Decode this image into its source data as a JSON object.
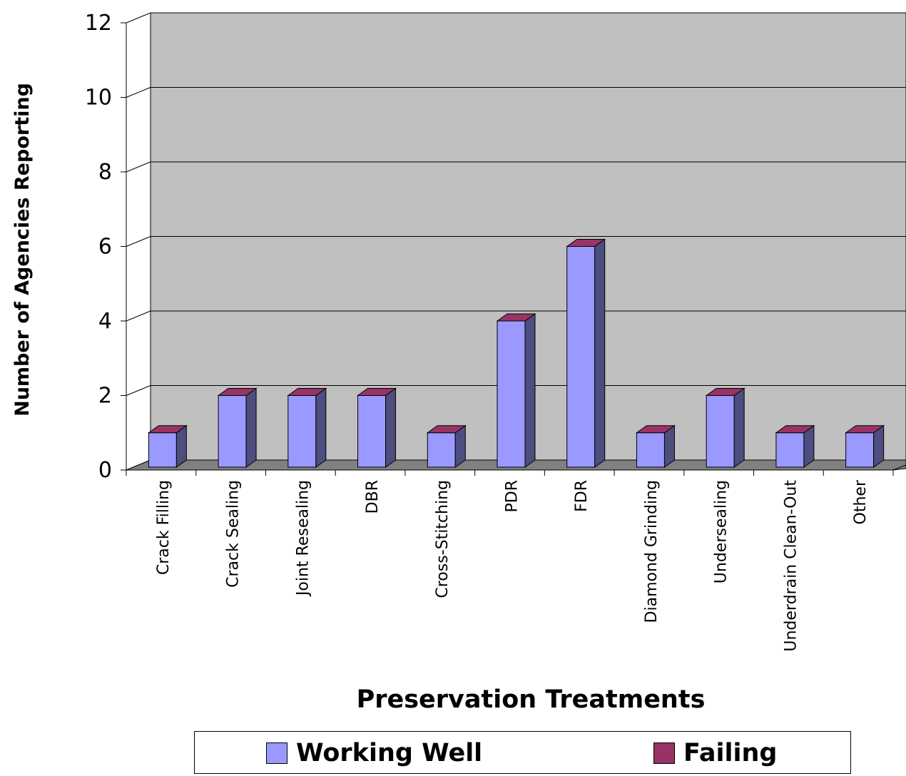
{
  "chart_data": {
    "type": "bar",
    "three_d": true,
    "xlabel": "Preservation Treatments",
    "ylabel": "Number of Agencies Reporting",
    "ylim": [
      0,
      12
    ],
    "yticks": [
      0,
      2,
      4,
      6,
      8,
      10,
      12
    ],
    "grid": true,
    "legend_position": "bottom",
    "categories": [
      "Crack Filling",
      "Crack Sealing",
      "Joint Resealing",
      "DBR",
      "Cross-Stitching",
      "PDR",
      "FDR",
      "Diamond Grinding",
      "Undersealing",
      "Underdrain Clean-Out",
      "Other"
    ],
    "series": [
      {
        "name": "Working Well",
        "color": "#9999ff",
        "side_color": "#4d4d80",
        "values": [
          1,
          2,
          2,
          2,
          1,
          4,
          6,
          1,
          2,
          1,
          1
        ]
      },
      {
        "name": "Failing",
        "color": "#993366",
        "side_color": "#4d1a33",
        "values": [
          0,
          0,
          0,
          0,
          0,
          0,
          0,
          0,
          0,
          0,
          0
        ]
      }
    ],
    "colors": {
      "plot_wall": "#c0c0c0",
      "floor": "#808080",
      "gridline": "#000000"
    }
  }
}
